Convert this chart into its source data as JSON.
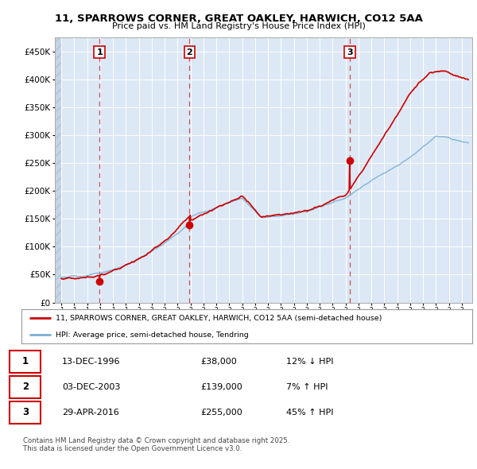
{
  "title": "11, SPARROWS CORNER, GREAT OAKLEY, HARWICH, CO12 5AA",
  "subtitle": "Price paid vs. HM Land Registry's House Price Index (HPI)",
  "legend_line1": "11, SPARROWS CORNER, GREAT OAKLEY, HARWICH, CO12 5AA (semi-detached house)",
  "legend_line2": "HPI: Average price, semi-detached house, Tendring",
  "footer": "Contains HM Land Registry data © Crown copyright and database right 2025.\nThis data is licensed under the Open Government Licence v3.0.",
  "sale_color": "#cc0000",
  "hpi_color": "#7bafd4",
  "bg_color": "#ffffff",
  "plot_bg_color": "#dce8f5",
  "hatch_color": "#c5d5e5",
  "grid_color": "#ffffff",
  "sales": [
    {
      "date_num": 1996.95,
      "price": 38000,
      "label": "1"
    },
    {
      "date_num": 2003.92,
      "price": 139000,
      "label": "2"
    },
    {
      "date_num": 2016.33,
      "price": 255000,
      "label": "3"
    }
  ],
  "annotations": [
    {
      "label": "1",
      "date": "13-DEC-1996",
      "price": "£38,000",
      "hpi_diff": "12% ↓ HPI"
    },
    {
      "label": "2",
      "date": "03-DEC-2003",
      "price": "£139,000",
      "hpi_diff": "7% ↑ HPI"
    },
    {
      "label": "3",
      "date": "29-APR-2016",
      "price": "£255,000",
      "hpi_diff": "45% ↑ HPI"
    }
  ],
  "ylim": [
    0,
    475000
  ],
  "yticks": [
    0,
    50000,
    100000,
    150000,
    200000,
    250000,
    300000,
    350000,
    400000,
    450000
  ],
  "ytick_labels": [
    "£0",
    "£50K",
    "£100K",
    "£150K",
    "£200K",
    "£250K",
    "£300K",
    "£350K",
    "£400K",
    "£450K"
  ],
  "xmin": 1993.5,
  "xmax": 2025.8,
  "dashed_vlines": [
    1996.95,
    2003.92,
    2016.33
  ],
  "data_start": 1994.0
}
